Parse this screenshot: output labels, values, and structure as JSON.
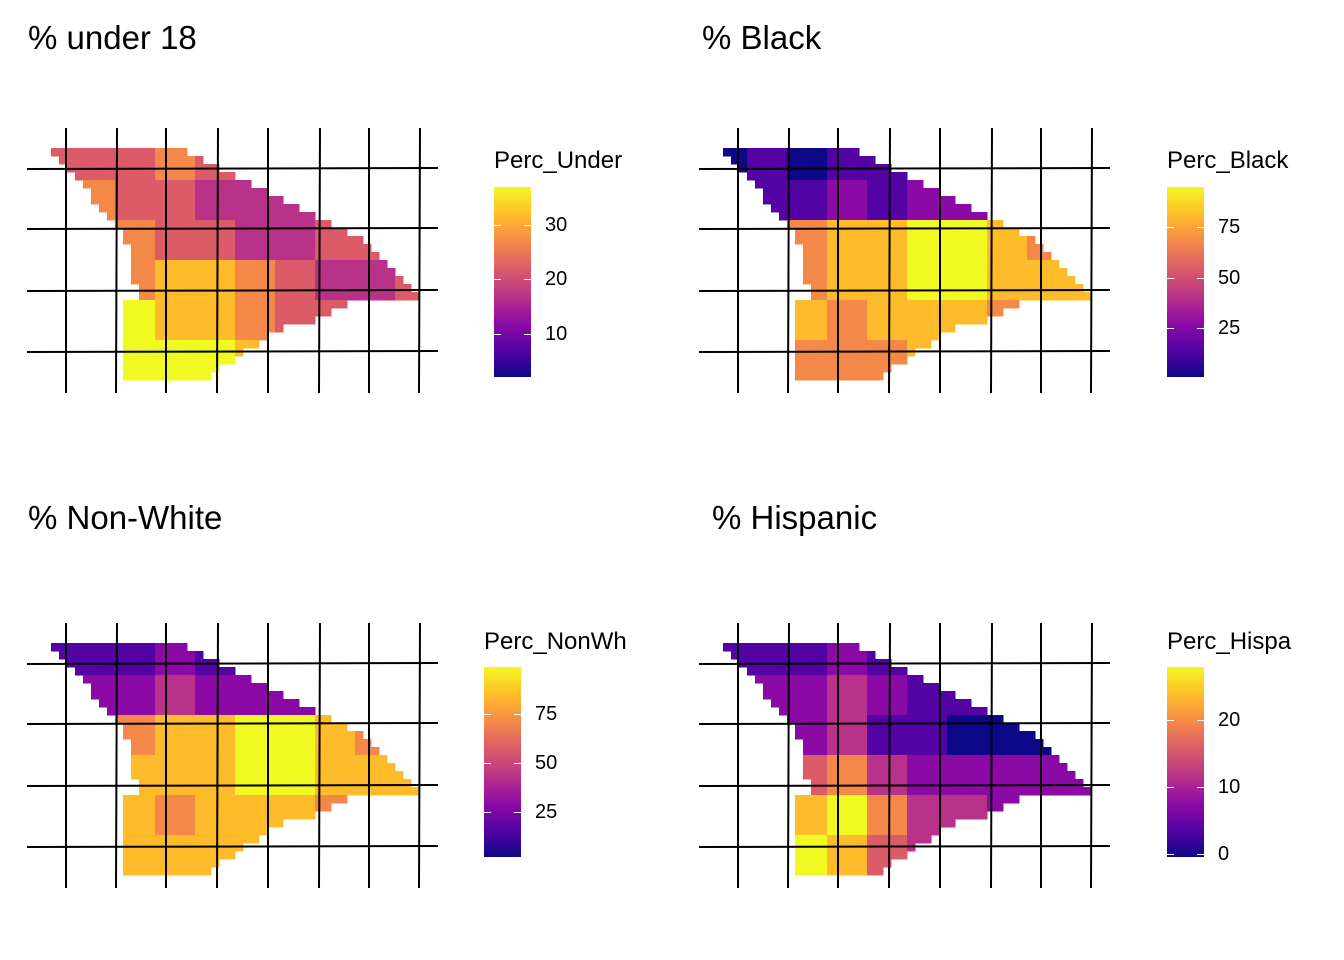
{
  "palette": [
    "#0d0887",
    "#5302a3",
    "#8b0aa5",
    "#b83289",
    "#db5c68",
    "#f48849",
    "#febc2a",
    "#f0f921"
  ],
  "panels": [
    {
      "title": "% under 18",
      "legend": {
        "title": "Perc_Under",
        "min": 2,
        "max": 37,
        "ticks": [
          "10",
          "20",
          "30"
        ],
        "tick_values": [
          10,
          20,
          30
        ]
      },
      "color_scheme": "under18"
    },
    {
      "title": "% Black",
      "legend": {
        "title": "Perc_Black",
        "min": 1,
        "max": 95,
        "ticks": [
          "25",
          "50",
          "75"
        ],
        "tick_values": [
          25,
          50,
          75
        ]
      },
      "color_scheme": "black"
    },
    {
      "title": "% Non-White",
      "legend": {
        "title": "Perc_NonWh",
        "min": 2,
        "max": 99,
        "ticks": [
          "25",
          "50",
          "75"
        ],
        "tick_values": [
          25,
          50,
          75
        ]
      },
      "color_scheme": "nonwhite"
    },
    {
      "title": "% Hispanic",
      "legend": {
        "title": "Perc_Hispa",
        "min": -0.5,
        "max": 28,
        "ticks": [
          "0",
          "10",
          "20"
        ],
        "tick_values": [
          0,
          10,
          20
        ]
      },
      "color_scheme": "hispanic"
    }
  ]
}
